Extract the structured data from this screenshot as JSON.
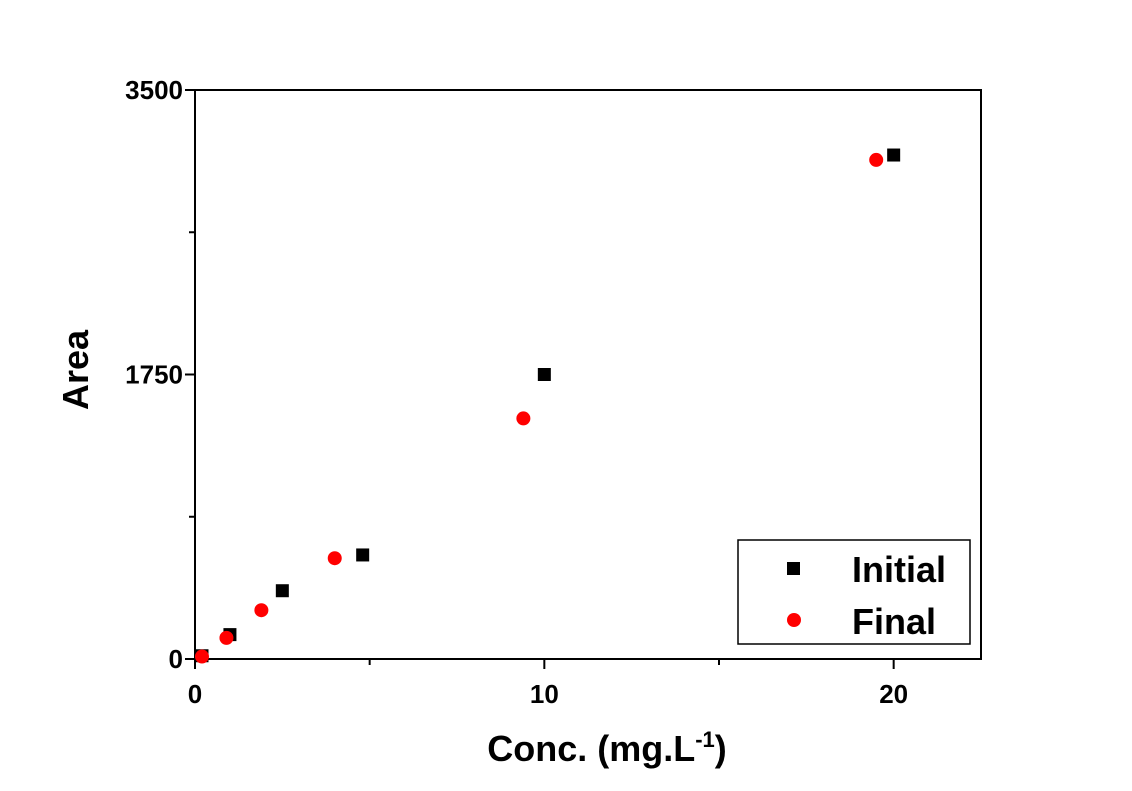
{
  "chart_data": {
    "type": "scatter",
    "xlabel": "Conc. (mg.L",
    "xlabel_superscript": "-1",
    "xlabel_suffix": ")",
    "ylabel": "Area",
    "xlim": [
      0,
      22.5
    ],
    "ylim": [
      0,
      3500
    ],
    "x_ticks": [
      0,
      10,
      20
    ],
    "x_tick_labels": [
      "0",
      "10",
      "20"
    ],
    "x_minor_ticks": [
      5,
      15
    ],
    "y_ticks": [
      0,
      1750,
      3500
    ],
    "y_tick_labels": [
      "0",
      "1750",
      "3500"
    ],
    "y_minor_ticks": [
      875,
      2625
    ],
    "grid": false,
    "legend_position": "bottom-right",
    "series": [
      {
        "name": "Initial",
        "marker": "square",
        "color": "#000000",
        "x": [
          0.2,
          1.0,
          2.5,
          4.8,
          10.0,
          20.0
        ],
        "y": [
          20,
          150,
          420,
          640,
          1750,
          3100
        ]
      },
      {
        "name": "Final",
        "marker": "circle",
        "color": "#ff0000",
        "x": [
          0.2,
          0.9,
          1.9,
          4.0,
          9.4,
          19.5
        ],
        "y": [
          15,
          130,
          300,
          620,
          1480,
          3070
        ]
      }
    ]
  }
}
